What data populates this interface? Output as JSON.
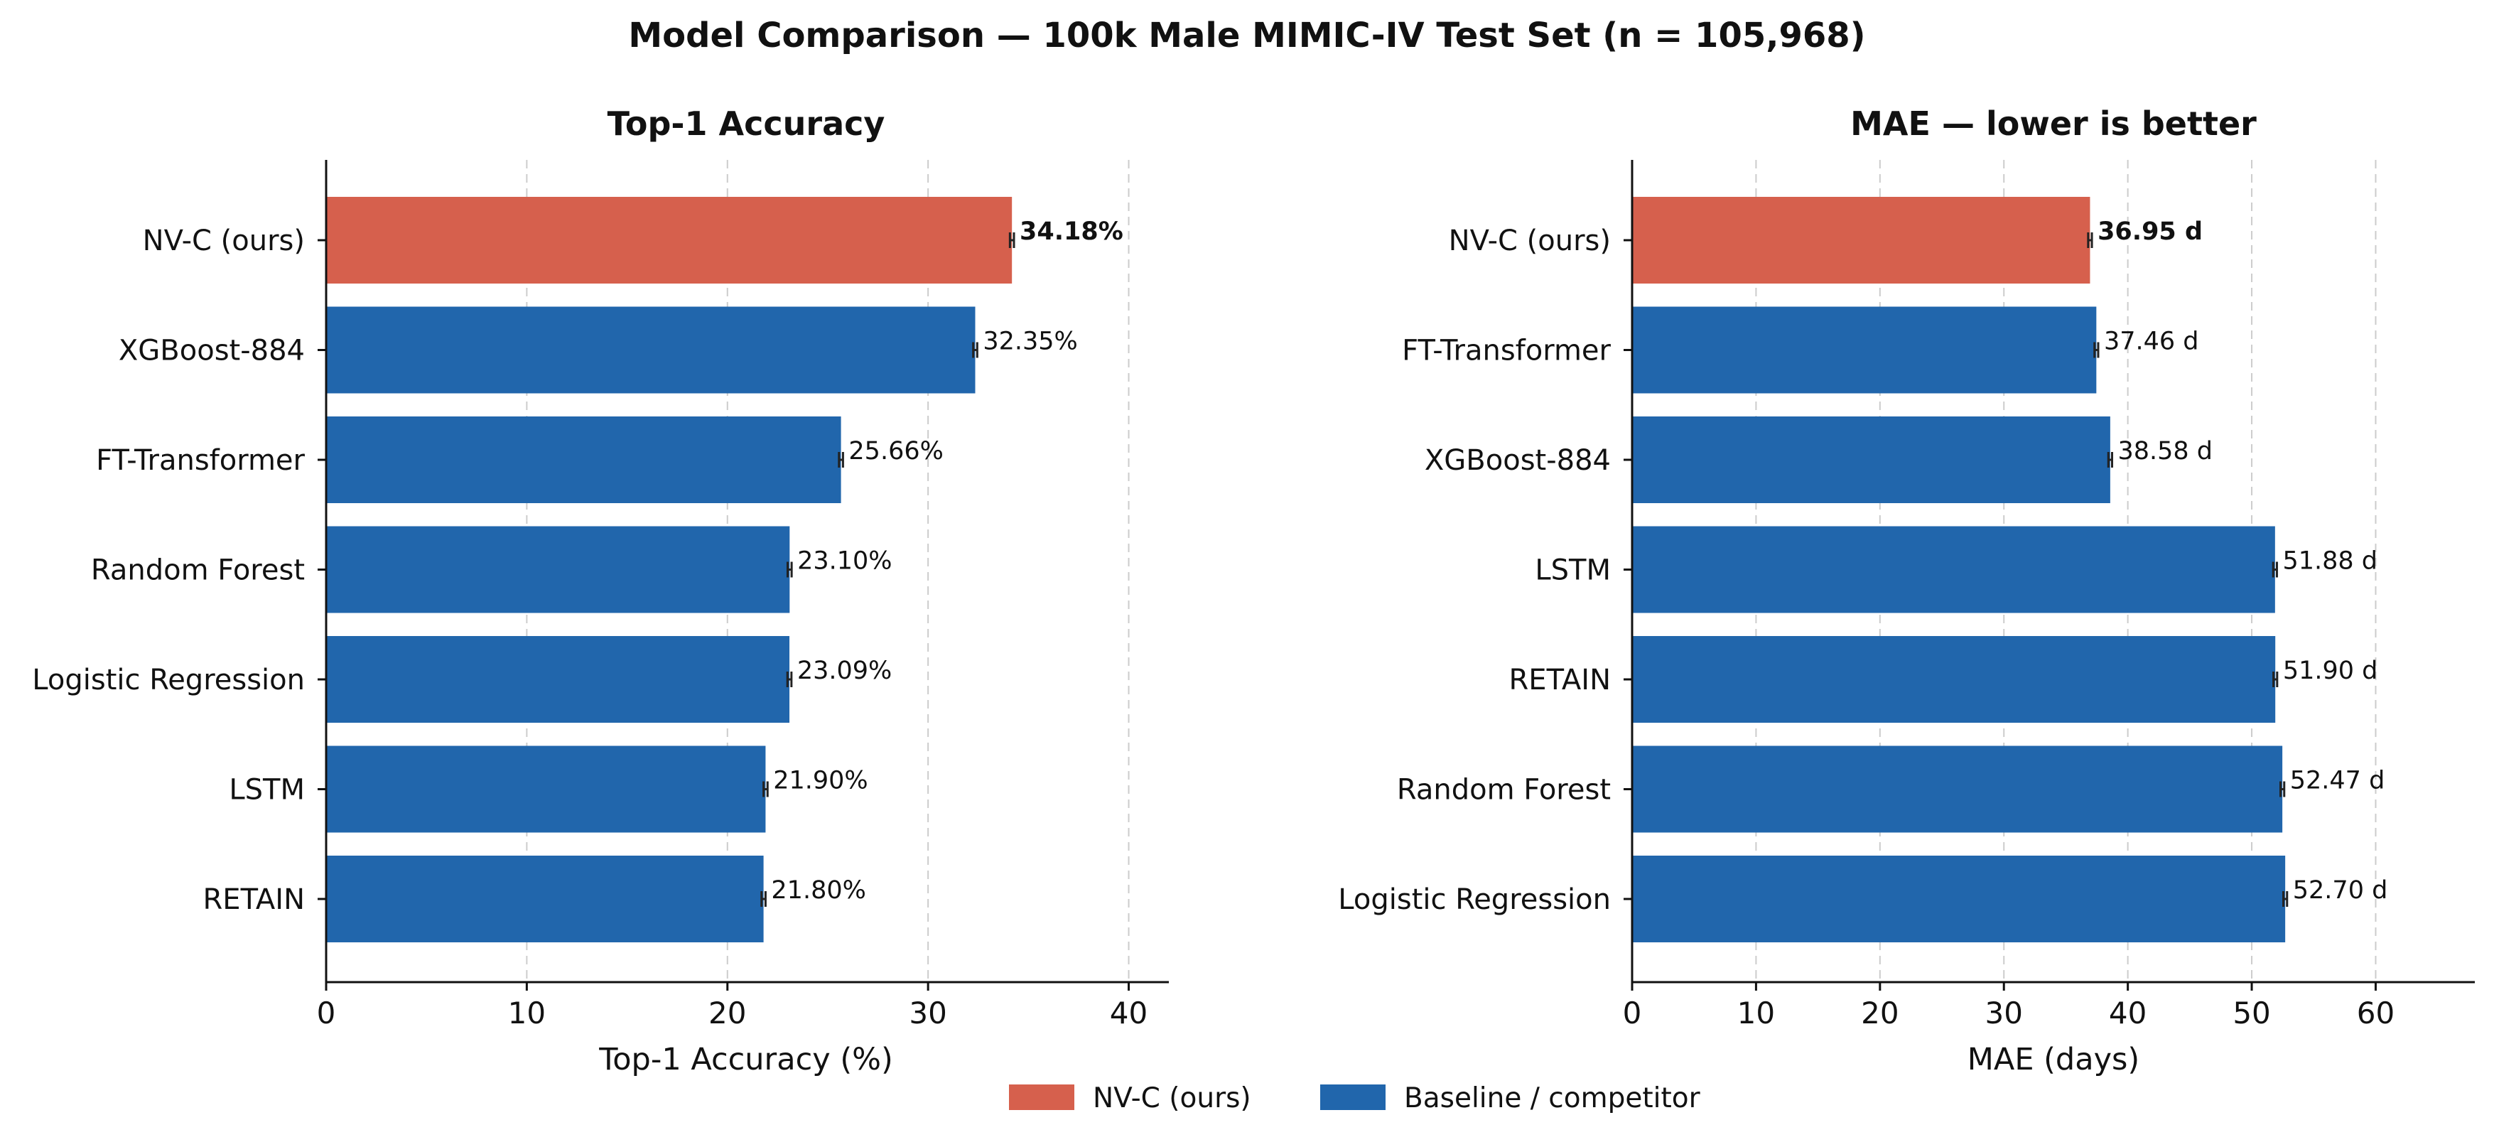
{
  "title": "Model Comparison — 100k Male MIMIC-IV Test Set (n = 105,968)",
  "colors": {
    "ours": "#d6604d",
    "baseline": "#2166ac"
  },
  "legend": {
    "position": "bottom-center",
    "entries": [
      {
        "label": "NV-C (ours)",
        "color": "#d6604d"
      },
      {
        "label": "Baseline / competitor",
        "color": "#2166ac"
      }
    ]
  },
  "chart_data": [
    {
      "type": "bar",
      "orientation": "horizontal",
      "title": "Top-1 Accuracy",
      "xlabel": "Top-1 Accuracy (%)",
      "ylabel": "",
      "xlim": [
        0,
        42
      ],
      "xticks": [
        0,
        10,
        20,
        30,
        40
      ],
      "grid": "x-dashed",
      "categories": [
        "NV-C (ours)",
        "XGBoost-884",
        "FT-Transformer",
        "Random Forest",
        "Logistic Regression",
        "LSTM",
        "RETAIN"
      ],
      "values": [
        34.18,
        32.35,
        25.66,
        23.1,
        23.09,
        21.9,
        21.8
      ],
      "error": [
        0.1,
        0.1,
        0.1,
        0.1,
        0.1,
        0.1,
        0.1
      ],
      "value_labels": [
        "34.18%",
        "32.35%",
        "25.66%",
        "23.10%",
        "23.09%",
        "21.90%",
        "21.80%"
      ],
      "highlight_index": 0
    },
    {
      "type": "bar",
      "orientation": "horizontal",
      "title": "MAE — lower is better",
      "xlabel": "MAE (days)",
      "ylabel": "",
      "xlim": [
        0,
        68
      ],
      "xticks": [
        0,
        10,
        20,
        30,
        40,
        50,
        60
      ],
      "grid": "x-dashed",
      "categories": [
        "NV-C (ours)",
        "FT-Transformer",
        "XGBoost-884",
        "LSTM",
        "RETAIN",
        "Random Forest",
        "Logistic Regression"
      ],
      "values": [
        36.95,
        37.46,
        38.58,
        51.88,
        51.9,
        52.47,
        52.7
      ],
      "error": [
        0.15,
        0.15,
        0.15,
        0.15,
        0.15,
        0.15,
        0.15
      ],
      "value_labels": [
        "36.95 d",
        "37.46 d",
        "38.58 d",
        "51.88 d",
        "51.90 d",
        "52.47 d",
        "52.70 d"
      ],
      "highlight_index": 0
    }
  ]
}
